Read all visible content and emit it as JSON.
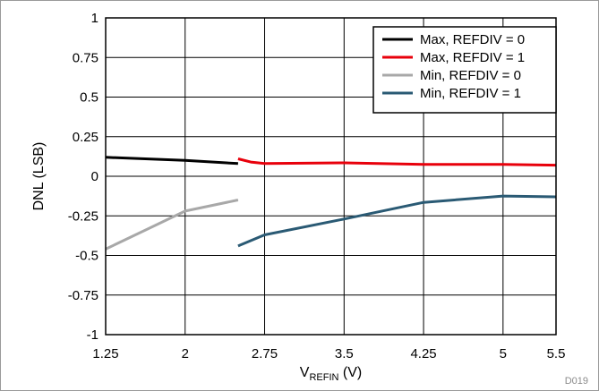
{
  "chart_data": {
    "type": "line",
    "xlabel_main": "V",
    "xlabel_sub": "REFIN",
    "xlabel_unit": " (V)",
    "ylabel": "DNL (LSB)",
    "xlim": [
      1.25,
      5.5
    ],
    "ylim": [
      -1,
      1
    ],
    "xticks": [
      1.25,
      2,
      2.75,
      3.5,
      4.25,
      5,
      5.5
    ],
    "xtick_labels": [
      "1.25",
      "2",
      "2.75",
      "3.5",
      "4.25",
      "5",
      "5.5"
    ],
    "yticks": [
      1,
      0.75,
      0.5,
      0.25,
      0,
      -0.25,
      -0.5,
      -0.75,
      -1
    ],
    "ytick_labels": [
      "1",
      "0.75",
      "0.5",
      "0.25",
      "0",
      "-0.25",
      "-0.5",
      "-0.75",
      "-1"
    ],
    "grid": true,
    "legend_position": "top-right",
    "figure_id": "D019",
    "series": [
      {
        "name": "Max, REFDIV = 0",
        "color": "#000000",
        "x": [
          1.25,
          2.0,
          2.5
        ],
        "y": [
          0.12,
          0.1,
          0.08
        ]
      },
      {
        "name": "Max, REFDIV = 1",
        "color": "#e8000b",
        "x": [
          2.5,
          2.62,
          2.75,
          3.5,
          4.25,
          5.0,
          5.5
        ],
        "y": [
          0.11,
          0.09,
          0.08,
          0.085,
          0.075,
          0.075,
          0.07
        ]
      },
      {
        "name": "Min, REFDIV = 0",
        "color": "#a8a8a8",
        "x": [
          1.25,
          2.0,
          2.5
        ],
        "y": [
          -0.46,
          -0.22,
          -0.15
        ]
      },
      {
        "name": "Min, REFDIV = 1",
        "color": "#2a5a74",
        "x": [
          2.5,
          2.75,
          3.5,
          4.25,
          5.0,
          5.5
        ],
        "y": [
          -0.44,
          -0.37,
          -0.27,
          -0.165,
          -0.125,
          -0.13
        ]
      }
    ]
  }
}
